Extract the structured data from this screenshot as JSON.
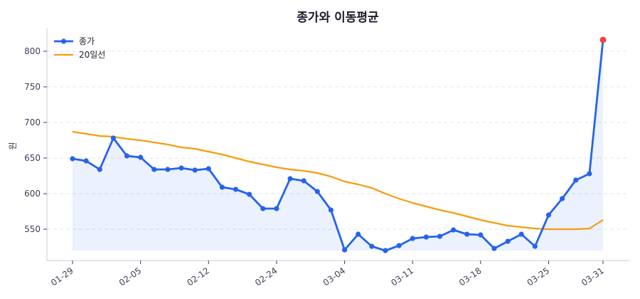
{
  "chart_data": {
    "type": "line",
    "title": "종가와 이동평균",
    "xlabel": "",
    "ylabel": "원",
    "ylim": [
      509,
      832
    ],
    "yticks": [
      550,
      600,
      650,
      700,
      750,
      800
    ],
    "grid": "y-dashed",
    "legend_position": "upper left",
    "x_tick_labels": [
      {
        "index": 0,
        "label": "01-29"
      },
      {
        "index": 5,
        "label": "02-05"
      },
      {
        "index": 10,
        "label": "02-12"
      },
      {
        "index": 15,
        "label": "02-24"
      },
      {
        "index": 20,
        "label": "03-04"
      },
      {
        "index": 25,
        "label": "03-11"
      },
      {
        "index": 30,
        "label": "03-18"
      },
      {
        "index": 35,
        "label": "03-25"
      },
      {
        "index": 39,
        "label": "03-31"
      }
    ],
    "n_points": 40,
    "series": [
      {
        "name": "종가",
        "color": "#2563eb",
        "marker": "circle",
        "fill_below": true,
        "values": [
          649,
          646,
          634,
          678,
          653,
          651,
          634,
          634,
          636,
          633,
          635,
          609,
          606,
          599,
          579,
          579,
          621,
          618,
          603,
          577,
          521,
          543,
          526,
          520,
          527,
          537,
          539,
          540,
          549,
          543,
          542,
          523,
          533,
          543,
          526,
          570,
          593,
          619,
          628,
          816
        ]
      },
      {
        "name": "20일선",
        "color": "#f59e0b",
        "marker": "none",
        "values": [
          687,
          684,
          681,
          680,
          677,
          675,
          672,
          669,
          665,
          663,
          659,
          655,
          650,
          645,
          641,
          637,
          634,
          632,
          629,
          624,
          617,
          613,
          608,
          600,
          593,
          587,
          582,
          577,
          573,
          568,
          563,
          559,
          555,
          553,
          551,
          550,
          550,
          550,
          551,
          563
        ]
      }
    ],
    "highlight_last_point": {
      "color": "#ef4444",
      "value": 816
    }
  },
  "legend": {
    "items": [
      {
        "label": "종가"
      },
      {
        "label": "20일선"
      }
    ]
  }
}
